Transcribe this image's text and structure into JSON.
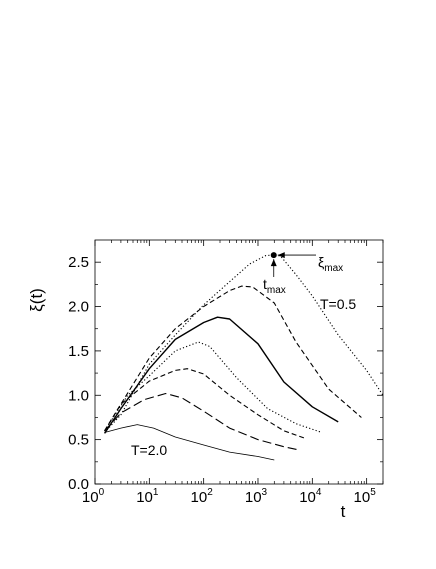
{
  "chart_data": {
    "type": "line",
    "ylabel": "ξ(t)",
    "xlabel": "t",
    "xscale": "log",
    "xlim": [
      1,
      200000
    ],
    "ylim": [
      0,
      2.75
    ],
    "grid": false,
    "x_ticks": [
      {
        "value": 1,
        "base": "10",
        "exp": "0"
      },
      {
        "value": 10,
        "base": "10",
        "exp": "1"
      },
      {
        "value": 100,
        "base": "10",
        "exp": "2"
      },
      {
        "value": 1000,
        "base": "10",
        "exp": "3"
      },
      {
        "value": 10000,
        "base": "10",
        "exp": "4"
      },
      {
        "value": 100000,
        "base": "10",
        "exp": "5"
      }
    ],
    "y_ticks": [
      {
        "value": 0.0,
        "label": "0.0"
      },
      {
        "value": 0.5,
        "label": "0.5"
      },
      {
        "value": 1.0,
        "label": "1.0"
      },
      {
        "value": 1.5,
        "label": "1.5"
      },
      {
        "value": 2.0,
        "label": "2.0"
      },
      {
        "value": 2.5,
        "label": "2.5"
      }
    ],
    "annotations": {
      "t_high_label": "T=0.5",
      "t_low_label": "T=2.0",
      "xi_max_base": "ξ",
      "xi_max_sub": "max",
      "t_max_base": "t",
      "t_max_sub": "max",
      "max_point": {
        "x": 1950,
        "y": 2.58
      }
    },
    "series": [
      {
        "style": "dotted",
        "color": "#000000",
        "points": [
          [
            1.5,
            0.58
          ],
          [
            3,
            0.78
          ],
          [
            10,
            1.35
          ],
          [
            30,
            1.68
          ],
          [
            100,
            2.02
          ],
          [
            300,
            2.28
          ],
          [
            700,
            2.48
          ],
          [
            1400,
            2.575
          ],
          [
            1950,
            2.58
          ],
          [
            2600,
            2.57
          ],
          [
            5000,
            2.36
          ],
          [
            10000,
            2.12
          ],
          [
            30000,
            1.68
          ],
          [
            100000,
            1.28
          ],
          [
            200000,
            1.0
          ]
        ]
      },
      {
        "style": "short-dash",
        "color": "#000000",
        "points": [
          [
            1.5,
            0.6
          ],
          [
            3,
            0.9
          ],
          [
            10,
            1.42
          ],
          [
            30,
            1.75
          ],
          [
            100,
            2.0
          ],
          [
            300,
            2.18
          ],
          [
            500,
            2.23
          ],
          [
            800,
            2.22
          ],
          [
            2000,
            2.04
          ],
          [
            5000,
            1.6
          ],
          [
            20000,
            1.07
          ],
          [
            80000,
            0.75
          ]
        ]
      },
      {
        "style": "solid",
        "color": "#000000",
        "points": [
          [
            1.5,
            0.57
          ],
          [
            3,
            0.85
          ],
          [
            10,
            1.3
          ],
          [
            30,
            1.63
          ],
          [
            100,
            1.82
          ],
          [
            180,
            1.88
          ],
          [
            300,
            1.86
          ],
          [
            1000,
            1.58
          ],
          [
            3000,
            1.15
          ],
          [
            10000,
            0.87
          ],
          [
            30000,
            0.7
          ]
        ]
      },
      {
        "style": "dotted",
        "color": "#000000",
        "points": [
          [
            1.5,
            0.6
          ],
          [
            4,
            1.0
          ],
          [
            10,
            1.22
          ],
          [
            30,
            1.5
          ],
          [
            80,
            1.6
          ],
          [
            130,
            1.55
          ],
          [
            400,
            1.2
          ],
          [
            1500,
            0.85
          ],
          [
            5000,
            0.68
          ],
          [
            15000,
            0.58
          ]
        ]
      },
      {
        "style": "short-dash",
        "color": "#000000",
        "points": [
          [
            1.5,
            0.6
          ],
          [
            3,
            0.9
          ],
          [
            10,
            1.16
          ],
          [
            30,
            1.28
          ],
          [
            50,
            1.3
          ],
          [
            100,
            1.24
          ],
          [
            300,
            1.0
          ],
          [
            1000,
            0.78
          ],
          [
            3000,
            0.6
          ],
          [
            7000,
            0.52
          ]
        ]
      },
      {
        "style": "long-dash",
        "color": "#000000",
        "points": [
          [
            1.5,
            0.6
          ],
          [
            3,
            0.8
          ],
          [
            8,
            0.95
          ],
          [
            20,
            1.02
          ],
          [
            40,
            0.97
          ],
          [
            100,
            0.82
          ],
          [
            300,
            0.63
          ],
          [
            1000,
            0.5
          ],
          [
            3000,
            0.42
          ],
          [
            6000,
            0.38
          ]
        ]
      },
      {
        "style": "solid-thin",
        "color": "#000000",
        "points": [
          [
            1.5,
            0.58
          ],
          [
            3,
            0.63
          ],
          [
            6,
            0.67
          ],
          [
            12,
            0.63
          ],
          [
            30,
            0.53
          ],
          [
            100,
            0.44
          ],
          [
            300,
            0.36
          ],
          [
            1000,
            0.31
          ],
          [
            2000,
            0.27
          ]
        ]
      }
    ]
  }
}
